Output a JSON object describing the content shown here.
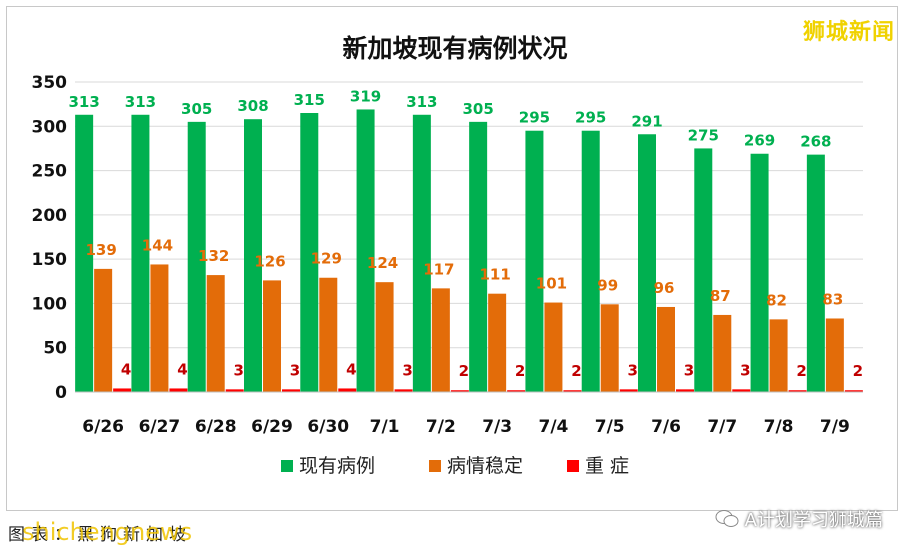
{
  "watermark_top": "狮城新闻",
  "watermark_bottom": "shichengnews",
  "caption": "图表：黑狗新加坡",
  "wechat_account": "A计划学习狮城篇",
  "chart_data": {
    "type": "bar",
    "title": "新加坡现有病例状况",
    "categories": [
      "6/26",
      "6/27",
      "6/28",
      "6/29",
      "6/30",
      "7/1",
      "7/2",
      "7/3",
      "7/4",
      "7/5",
      "7/6",
      "7/7",
      "7/8",
      "7/9"
    ],
    "series": [
      {
        "name": "现有病例",
        "color": "#00b050",
        "label_color": "#00b050",
        "values": [
          313,
          313,
          305,
          308,
          315,
          319,
          313,
          305,
          295,
          295,
          291,
          275,
          269,
          268
        ]
      },
      {
        "name": "病情稳定",
        "color": "#e36c09",
        "label_color": "#e36c09",
        "values": [
          139,
          144,
          132,
          126,
          129,
          124,
          117,
          111,
          101,
          99,
          96,
          87,
          82,
          83
        ]
      },
      {
        "name": "重 症",
        "color": "#ff0000",
        "label_color": "#c00000",
        "values": [
          4,
          4,
          3,
          3,
          4,
          3,
          2,
          2,
          2,
          3,
          3,
          3,
          2,
          2
        ]
      }
    ],
    "ylim": [
      0,
      350
    ],
    "yticks": [
      0,
      50,
      100,
      150,
      200,
      250,
      300,
      350
    ],
    "xlabel": "",
    "ylabel": "",
    "grid": true,
    "legend": "bottom"
  }
}
